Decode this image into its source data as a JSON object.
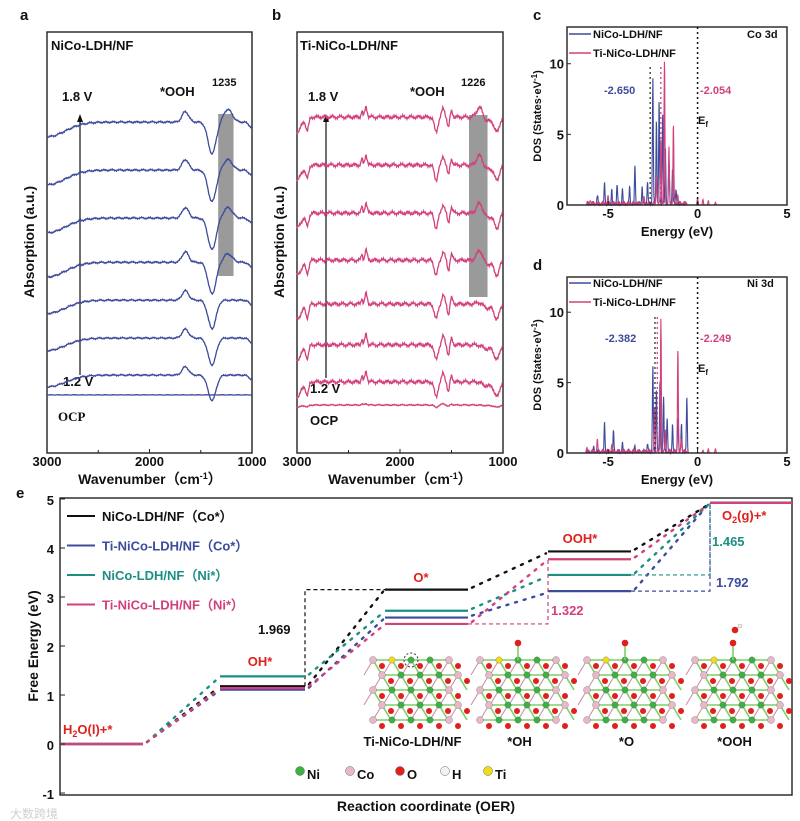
{
  "colors": {
    "blue": "#3d4b9c",
    "pink": "#d2417c",
    "teal": "#1c8f83",
    "black": "#111111",
    "red": "#e0201c",
    "highlight": "#9a9a9a"
  },
  "watermark": "大数跨境",
  "chart_data": [
    {
      "panel": "a",
      "type": "line",
      "title": "NiCo-LDH/NF",
      "xlabel_main": "Wavenumber（cm",
      "xlabel_sup": "-1",
      "xlabel_end": "）",
      "ylabel": "Absorption (a.u.)",
      "xlim": [
        3000,
        1000
      ],
      "ylim": [
        0,
        10
      ],
      "xticks": [
        "3000",
        "2000",
        "1000"
      ],
      "xtick_values": [
        3000,
        2000,
        1000
      ],
      "band_label": "*OOH",
      "band_value": "1235",
      "band_range": [
        1330,
        1180
      ],
      "arrow_top": "1.8 V",
      "arrow_bottom": "1.2 V",
      "baseline_label": "OCP",
      "noise": 0.02,
      "features": [
        {
          "center": 3000,
          "amp": -0.35,
          "width": 250
        },
        {
          "center": 1650,
          "amp": 0.25,
          "width": 45
        },
        {
          "center": 1390,
          "amp": -0.75,
          "width": 55
        },
        {
          "center": 1000,
          "amp": -0.12,
          "width": 40
        }
      ],
      "ooh_feature": {
        "center": 1235,
        "width": 60
      },
      "series": [
        {
          "name": "OCP",
          "offset": 1.38,
          "scale": 0,
          "ooh": 0
        },
        {
          "name": "1.2 V",
          "offset": 1.85,
          "scale": 0.8,
          "ooh": 0
        },
        {
          "offset": 2.73,
          "scale": 0.85,
          "ooh": 0
        },
        {
          "offset": 3.63,
          "scale": 0.9,
          "ooh": 0
        },
        {
          "offset": 4.53,
          "scale": 1,
          "ooh": 0.2
        },
        {
          "offset": 5.58,
          "scale": 1,
          "ooh": 0.25
        },
        {
          "offset": 6.72,
          "scale": 1,
          "ooh": 0.25
        },
        {
          "name": "1.8 V",
          "offset": 7.86,
          "scale": 1,
          "ooh": 0.3
        }
      ]
    },
    {
      "panel": "b",
      "type": "line",
      "title": "Ti-NiCo-LDH/NF",
      "xlabel_main": "Wavenumber（cm",
      "xlabel_sup": "-1",
      "xlabel_end": "）",
      "ylabel": "Absorption (a.u.)",
      "xlim": [
        3000,
        1000
      ],
      "ylim": [
        0,
        10
      ],
      "xticks": [
        "3000",
        "2000",
        "1000"
      ],
      "xtick_values": [
        3000,
        2000,
        1000
      ],
      "band_label": "*OOH",
      "band_value": "1226",
      "band_range": [
        1330,
        1150
      ],
      "arrow_top": "1.8 V",
      "arrow_bottom": "1.2 V",
      "baseline_label": "OCP",
      "noise": 0.04,
      "features": [
        {
          "center": 3000,
          "amp": -0.35,
          "width": 60
        },
        {
          "center": 2900,
          "amp": -0.3,
          "width": 20
        },
        {
          "center": 2370,
          "amp": 0.15,
          "width": 10
        },
        {
          "center": 2330,
          "amp": 0.25,
          "width": 15
        },
        {
          "center": 1650,
          "amp": -0.35,
          "width": 25
        },
        {
          "center": 1580,
          "amp": 0.2,
          "width": 20
        },
        {
          "center": 1530,
          "amp": -0.25,
          "width": 15
        },
        {
          "center": 1500,
          "amp": 0.15,
          "width": 15
        },
        {
          "center": 1150,
          "amp": -0.1,
          "width": 60
        },
        {
          "center": 1060,
          "amp": -0.35,
          "width": 35
        }
      ],
      "ooh_feature": {
        "center": 1226,
        "width": 40
      },
      "series": [
        {
          "name": "OCP",
          "offset": 1.14,
          "scale": 0.15,
          "ooh": 0
        },
        {
          "name": "1.2 V",
          "offset": 1.69,
          "scale": 1,
          "ooh": 0
        },
        {
          "offset": 2.57,
          "scale": 1,
          "ooh": 0
        },
        {
          "offset": 3.54,
          "scale": 1,
          "ooh": 0.05
        },
        {
          "offset": 4.58,
          "scale": 1,
          "ooh": 0.25
        },
        {
          "offset": 5.7,
          "scale": 1,
          "ooh": 0.25
        },
        {
          "offset": 6.84,
          "scale": 1,
          "ooh": 0.25
        },
        {
          "name": "1.8 V",
          "offset": 7.98,
          "scale": 1,
          "ooh": 0.25
        }
      ]
    },
    {
      "panel": "c",
      "type": "line",
      "orbital": "Co 3d",
      "xlabel": "Energy (eV)",
      "ylabel_main": "DOS (States·eV",
      "ylabel_sup": "-1",
      "ylabel_end": ")",
      "xlim": [
        -7.3,
        5
      ],
      "ylim": [
        0,
        12.6
      ],
      "xticks": [
        "-5",
        "0",
        "5"
      ],
      "xtick_values": [
        -5,
        0,
        5
      ],
      "yticks": [
        "0",
        "5",
        "10"
      ],
      "ytick_values": [
        0,
        5,
        10
      ],
      "fermi_label": "E",
      "fermi_sub": "f",
      "d_band_centers": [
        {
          "series": "NiCo-LDH/NF",
          "value": -2.65,
          "label": "-2.650"
        },
        {
          "series": "Ti-NiCo-LDH/NF",
          "value": -2.054,
          "label": "-2.054"
        }
      ],
      "series": [
        {
          "name": "NiCo-LDH/NF",
          "color": "#3d4b9c",
          "peaks": [
            [
              -5.6,
              0.6
            ],
            [
              -5.2,
              1.5
            ],
            [
              -4.8,
              1.0
            ],
            [
              -4.5,
              1.4
            ],
            [
              -4.2,
              1.0
            ],
            [
              -3.8,
              1.2
            ],
            [
              -3.5,
              2.7
            ],
            [
              -3.1,
              1.2
            ],
            [
              -2.8,
              1.6
            ],
            [
              -2.5,
              8.8
            ],
            [
              -2.3,
              6.0
            ],
            [
              -2.15,
              7.2
            ],
            [
              -1.95,
              6.5
            ],
            [
              -1.8,
              4.0
            ],
            [
              -1.6,
              3.0
            ],
            [
              -1.4,
              2.5
            ],
            [
              -1.2,
              1.0
            ]
          ]
        },
        {
          "name": "Ti-NiCo-LDH/NF",
          "color": "#d2417c",
          "peaks": [
            [
              -6.0,
              0.3
            ],
            [
              -5.0,
              0.5
            ],
            [
              -3.0,
              0.4
            ],
            [
              -2.3,
              2.0
            ],
            [
              -2.05,
              4.5
            ],
            [
              -1.85,
              10.2
            ],
            [
              -1.6,
              4.0
            ],
            [
              -1.35,
              5.6
            ],
            [
              -1.1,
              0.6
            ],
            [
              0.0,
              0.5
            ],
            [
              0.3,
              0.4
            ],
            [
              0.6,
              0.3
            ],
            [
              1.0,
              0.2
            ]
          ]
        }
      ]
    },
    {
      "panel": "d",
      "type": "line",
      "orbital": "Ni 3d",
      "xlabel": "Energy (eV)",
      "ylabel_main": "DOS (States·eV",
      "ylabel_sup": "-1",
      "ylabel_end": ")",
      "xlim": [
        -7.3,
        5
      ],
      "ylim": [
        0,
        12.5
      ],
      "xticks": [
        "-5",
        "0",
        "5"
      ],
      "xtick_values": [
        -5,
        0,
        5
      ],
      "yticks": [
        "0",
        "5",
        "10"
      ],
      "ytick_values": [
        0,
        5,
        10
      ],
      "fermi_label": "E",
      "fermi_sub": "f",
      "d_band_centers": [
        {
          "series": "NiCo-LDH/NF",
          "value": -2.382,
          "label": "-2.382"
        },
        {
          "series": "Ti-NiCo-LDH/NF",
          "value": -2.249,
          "label": "-2.249"
        }
      ],
      "series": [
        {
          "name": "NiCo-LDH/NF",
          "color": "#3d4b9c",
          "peaks": [
            [
              -5.8,
              0.3
            ],
            [
              -5.2,
              2.1
            ],
            [
              -4.7,
              1.4
            ],
            [
              -4.2,
              0.6
            ],
            [
              -3.5,
              0.4
            ],
            [
              -2.8,
              0.6
            ],
            [
              -2.5,
              6.0
            ],
            [
              -2.3,
              4.5
            ],
            [
              -2.1,
              5.0
            ],
            [
              -1.9,
              3.8
            ],
            [
              -1.7,
              2.5
            ],
            [
              -1.4,
              2.0
            ],
            [
              -1.1,
              2.5
            ],
            [
              -0.9,
              2.0
            ],
            [
              -0.6,
              4.0
            ]
          ]
        },
        {
          "name": "Ti-NiCo-LDH/NF",
          "color": "#d2417c",
          "peaks": [
            [
              -6.2,
              0.3
            ],
            [
              -5.6,
              0.8
            ],
            [
              -4.8,
              0.5
            ],
            [
              -2.4,
              3.0
            ],
            [
              -2.05,
              9.4
            ],
            [
              -1.8,
              1.5
            ],
            [
              -1.1,
              7.3
            ],
            [
              -0.9,
              1.0
            ],
            [
              0.3,
              0.2
            ],
            [
              0.6,
              0.3
            ],
            [
              1.0,
              0.3
            ]
          ]
        }
      ]
    },
    {
      "panel": "e",
      "type": "line",
      "subtype": "free-energy-diagram",
      "xlabel": "Reaction coordinate (OER)",
      "ylabel": "Free Energy (eV)",
      "ylim": [
        -1.04,
        5.02
      ],
      "yticks": [
        "-1",
        "0",
        "1",
        "2",
        "3",
        "4",
        "5"
      ],
      "ytick_values": [
        -1,
        0,
        1,
        2,
        3,
        4,
        5
      ],
      "steps": [
        {
          "main": "H",
          "sub": "2",
          "rest": "O(l)+*"
        },
        {
          "main": "OH*"
        },
        {
          "main": "O*"
        },
        {
          "main": "OOH*"
        },
        {
          "main": "O",
          "sub": "2",
          "rest": "(g)+*"
        }
      ],
      "series": [
        {
          "name": "NiCo-LDH/NF（Co*）",
          "color": "#111111",
          "values": [
            0,
            1.18,
            3.15,
            3.93,
            4.92
          ]
        },
        {
          "name": "Ti-NiCo-LDH/NF（Co*）",
          "color": "#3d4b9c",
          "values": [
            0,
            1.11,
            2.58,
            3.12,
            4.92
          ]
        },
        {
          "name": "NiCo-LDH/NF（Ni*）",
          "color": "#1c8f83",
          "values": [
            0,
            1.38,
            2.72,
            3.45,
            4.92
          ]
        },
        {
          "name": "Ti-NiCo-LDH/NF（Ni*）",
          "color": "#d2417c",
          "values": [
            0,
            1.14,
            2.45,
            3.77,
            4.92
          ]
        }
      ],
      "limiting_steps": [
        {
          "label": "1.969",
          "series": 0,
          "from_step": 1
        },
        {
          "label": "1.322",
          "series": 3,
          "from_step": 2
        },
        {
          "label": "1.465",
          "series": 2,
          "from_step": 3
        },
        {
          "label": "1.792",
          "series": 1,
          "from_step": 3
        }
      ],
      "structures": [
        "Ti-NiCo-LDH/NF",
        "*OH",
        "*O",
        "*OOH"
      ],
      "atom_legend": [
        {
          "label": "Ni",
          "color": "#3cb043"
        },
        {
          "label": "Co",
          "color": "#e8b8c8"
        },
        {
          "label": "O",
          "color": "#e0201c"
        },
        {
          "label": "H",
          "color": "#f2f2f2"
        },
        {
          "label": "Ti",
          "color": "#f2dc1a"
        }
      ]
    }
  ]
}
